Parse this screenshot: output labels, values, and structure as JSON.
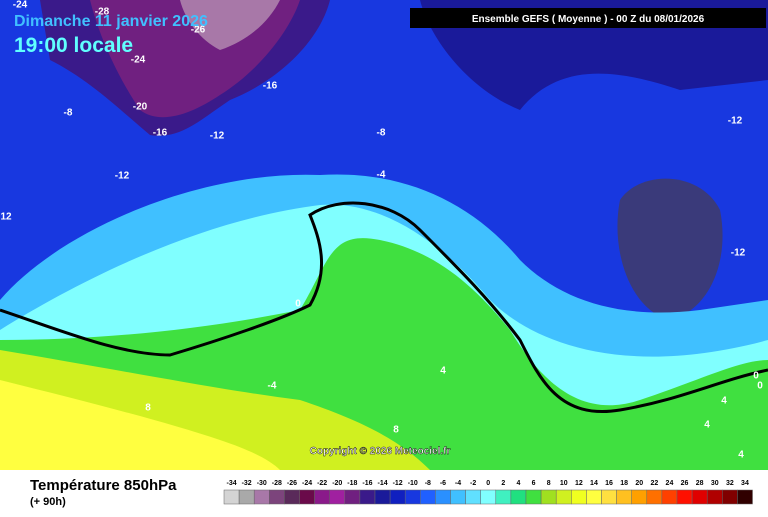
{
  "header": {
    "date": "Dimanche 11 janvier 2026",
    "time": "19:00 locale",
    "model": "Ensemble GEFS  ( Moyenne )  -  00 Z du 08/01/2026",
    "copyright": "Copyright © 2026 Meteociel.fr"
  },
  "contour_labels": [
    -24,
    -28,
    -26,
    -24,
    -16,
    -20,
    -8,
    -16,
    -12,
    -8,
    -12,
    -12,
    -4,
    12,
    -12,
    0,
    4,
    -4,
    8,
    0,
    0,
    4,
    4,
    8,
    4
  ],
  "legend": {
    "title": "Température 850hPa",
    "lead": "(+ 90h)",
    "values": [
      -34,
      -32,
      -30,
      -28,
      -26,
      -24,
      -22,
      -20,
      -18,
      -16,
      -14,
      -12,
      -10,
      -8,
      -6,
      -4,
      -2,
      0,
      2,
      4,
      6,
      8,
      10,
      12,
      14,
      16,
      18,
      20,
      22,
      24,
      26,
      28,
      30,
      32,
      34
    ],
    "colors": [
      "#d4d4d4",
      "#a9a9a9",
      "#a878a8",
      "#7c447c",
      "#5a2a5a",
      "#6a0a4a",
      "#8a1a8a",
      "#a020a0",
      "#702080",
      "#3a1a8a",
      "#1a1a9a",
      "#1020c0",
      "#1838e0",
      "#2060ff",
      "#2a90ff",
      "#40c0ff",
      "#60e0ff",
      "#80ffff",
      "#40f0c0",
      "#20e080",
      "#40e040",
      "#a0e020",
      "#d0f020",
      "#f0ff20",
      "#ffff40",
      "#ffe040",
      "#ffc020",
      "#ffa000",
      "#ff7000",
      "#ff4000",
      "#ff1000",
      "#e00000",
      "#b00000",
      "#800000",
      "#300000"
    ]
  }
}
